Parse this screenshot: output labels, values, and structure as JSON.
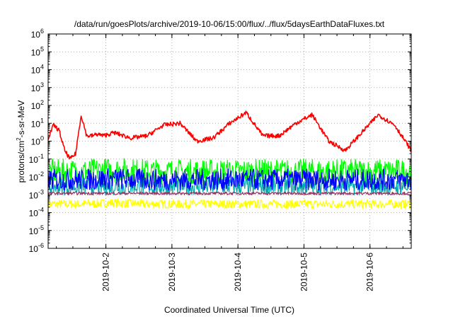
{
  "chart_data": {
    "type": "line",
    "title": "/data/run/goesPlots/archive/2019-10-06/15:00/flux/../flux/5daysEarthDataFluxes.txt",
    "xlabel": "Coordinated Universal Time (UTC)",
    "ylabel": {
      "base": "protons/cm",
      "sup": "2",
      "rest": "-s-sr-MeV"
    },
    "x_range": [
      "2019-10-01T03:00",
      "2019-10-06T15:00"
    ],
    "x_ticks": [
      {
        "label": "2019-10-2",
        "date": "2019-10-02T00:00"
      },
      {
        "label": "2019-10-3",
        "date": "2019-10-03T00:00"
      },
      {
        "label": "2019-10-4",
        "date": "2019-10-04T00:00"
      },
      {
        "label": "2019-10-5",
        "date": "2019-10-05T00:00"
      },
      {
        "label": "2019-10-6",
        "date": "2019-10-06T00:00"
      }
    ],
    "y_scale": "log",
    "ylim": [
      1e-06,
      1000000.0
    ],
    "y_ticks": [
      {
        "base": "10",
        "exp": "-6",
        "value": 1e-06
      },
      {
        "base": "10",
        "exp": "-5",
        "value": 1e-05
      },
      {
        "base": "10",
        "exp": "-4",
        "value": 0.0001
      },
      {
        "base": "10",
        "exp": "-3",
        "value": 0.001
      },
      {
        "base": "10",
        "exp": "-2",
        "value": 0.01
      },
      {
        "base": "10",
        "exp": "-1",
        "value": 0.1
      },
      {
        "base": "10",
        "exp": "0",
        "value": 1
      },
      {
        "base": "10",
        "exp": "1",
        "value": 10.0
      },
      {
        "base": "10",
        "exp": "2",
        "value": 100.0
      },
      {
        "base": "10",
        "exp": "3",
        "value": 1000.0
      },
      {
        "base": "10",
        "exp": "4",
        "value": 10000.0
      },
      {
        "base": "10",
        "exp": "5",
        "value": 100000.0
      },
      {
        "base": "10",
        "exp": "6",
        "value": 1000000.0
      }
    ],
    "grid": true,
    "legend": "none",
    "series": [
      {
        "color": "#ffff00",
        "noise": 0.25,
        "x": [
          "2019-10-01T03:00",
          "2019-10-01T15:00",
          "2019-10-02T03:00",
          "2019-10-02T15:00",
          "2019-10-03T03:00",
          "2019-10-03T15:00",
          "2019-10-04T03:00",
          "2019-10-04T15:00",
          "2019-10-05T03:00",
          "2019-10-05T15:00",
          "2019-10-06T03:00",
          "2019-10-06T15:00"
        ],
        "y": [
          0.0003,
          0.0003,
          0.00035,
          0.0003,
          0.0003,
          0.0003,
          0.0003,
          0.0003,
          0.0003,
          0.0003,
          0.0003,
          0.0003
        ]
      },
      {
        "color": "#00ff00",
        "noise": 0.7,
        "x": [
          "2019-10-01T03:00",
          "2019-10-01T15:00",
          "2019-10-02T03:00",
          "2019-10-02T15:00",
          "2019-10-03T03:00",
          "2019-10-03T15:00",
          "2019-10-04T03:00",
          "2019-10-04T15:00",
          "2019-10-05T03:00",
          "2019-10-05T15:00",
          "2019-10-06T03:00",
          "2019-10-06T15:00"
        ],
        "y": [
          0.02,
          0.02,
          0.025,
          0.02,
          0.02,
          0.02,
          0.02,
          0.02,
          0.02,
          0.02,
          0.02,
          0.02
        ]
      },
      {
        "color": "#00aaaa",
        "noise": 0.5,
        "x": [
          "2019-10-01T03:00",
          "2019-10-01T15:00",
          "2019-10-02T03:00",
          "2019-10-02T15:00",
          "2019-10-03T03:00",
          "2019-10-03T15:00",
          "2019-10-04T03:00",
          "2019-10-04T15:00",
          "2019-10-05T03:00",
          "2019-10-05T15:00",
          "2019-10-06T03:00",
          "2019-10-06T15:00"
        ],
        "y": [
          0.003,
          0.003,
          0.003,
          0.003,
          0.003,
          0.003,
          0.003,
          0.003,
          0.003,
          0.003,
          0.003,
          0.003
        ]
      },
      {
        "color": "#0000ff",
        "noise": 0.6,
        "x": [
          "2019-10-01T03:00",
          "2019-10-01T15:00",
          "2019-10-02T03:00",
          "2019-10-02T15:00",
          "2019-10-03T03:00",
          "2019-10-03T15:00",
          "2019-10-04T03:00",
          "2019-10-04T15:00",
          "2019-10-05T03:00",
          "2019-10-05T15:00",
          "2019-10-06T03:00",
          "2019-10-06T15:00"
        ],
        "y": [
          0.007,
          0.007,
          0.008,
          0.007,
          0.007,
          0.007,
          0.007,
          0.007,
          0.007,
          0.007,
          0.007,
          0.007
        ]
      },
      {
        "color": "#993366",
        "noise": 0.08,
        "x": [
          "2019-10-01T03:00",
          "2019-10-01T15:00",
          "2019-10-02T03:00",
          "2019-10-02T15:00",
          "2019-10-03T03:00",
          "2019-10-03T15:00",
          "2019-10-04T03:00",
          "2019-10-04T15:00",
          "2019-10-05T03:00",
          "2019-10-05T15:00",
          "2019-10-06T03:00",
          "2019-10-06T15:00"
        ],
        "y": [
          0.0012,
          0.0012,
          0.0012,
          0.0012,
          0.0012,
          0.0012,
          0.0012,
          0.0012,
          0.0012,
          0.0012,
          0.0012,
          0.0012
        ]
      },
      {
        "color": "#ff0000",
        "noise": 0.12,
        "x": [
          "2019-10-01T03:00",
          "2019-10-01T05:00",
          "2019-10-01T07:00",
          "2019-10-01T09:00",
          "2019-10-01T11:00",
          "2019-10-01T13:00",
          "2019-10-01T15:00",
          "2019-10-01T17:00",
          "2019-10-01T19:00",
          "2019-10-01T21:00",
          "2019-10-01T23:00",
          "2019-10-02T03:00",
          "2019-10-02T09:00",
          "2019-10-02T15:00",
          "2019-10-02T21:00",
          "2019-10-03T03:00",
          "2019-10-03T09:00",
          "2019-10-03T15:00",
          "2019-10-03T21:00",
          "2019-10-04T03:00",
          "2019-10-04T09:00",
          "2019-10-04T15:00",
          "2019-10-04T21:00",
          "2019-10-05T03:00",
          "2019-10-05T09:00",
          "2019-10-05T15:00",
          "2019-10-05T21:00",
          "2019-10-06T03:00",
          "2019-10-06T09:00",
          "2019-10-06T15:00"
        ],
        "y": [
          1.5,
          8,
          4,
          0.3,
          0.1,
          0.2,
          30,
          2,
          2,
          2.5,
          2,
          3,
          1.5,
          2,
          8,
          10,
          1,
          1.5,
          10,
          40,
          2,
          2,
          10,
          30,
          1,
          0.3,
          3,
          30,
          8,
          0.3
        ]
      }
    ]
  }
}
